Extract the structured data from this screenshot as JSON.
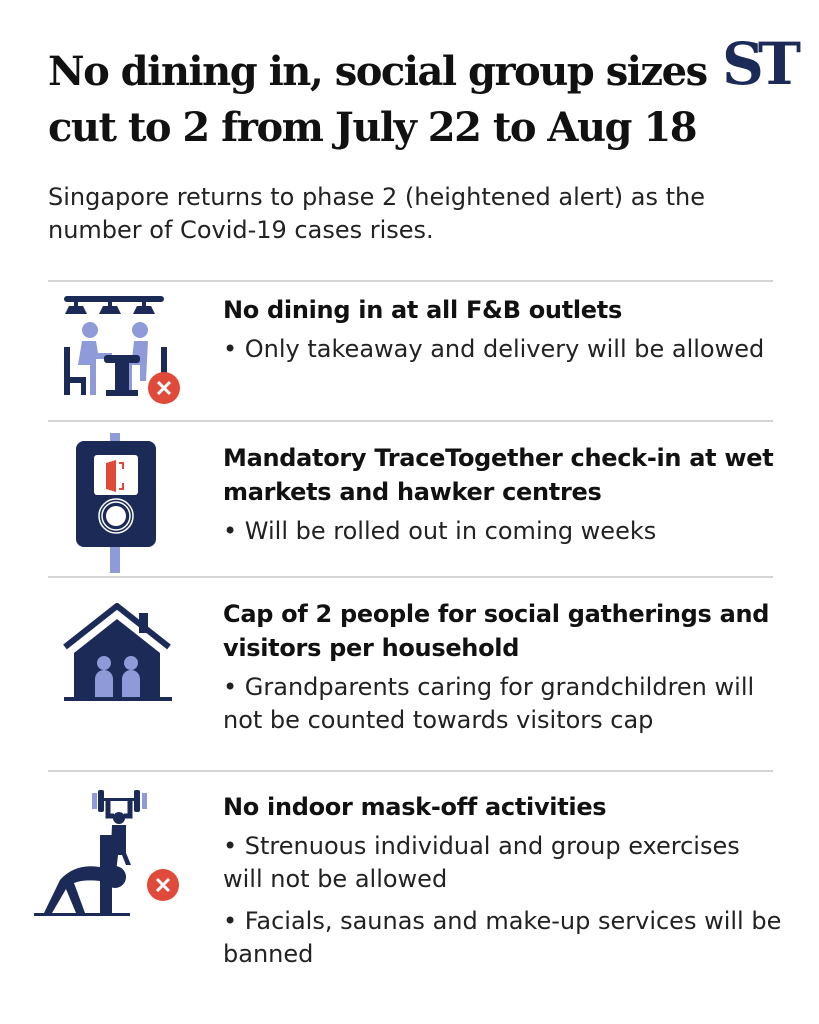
{
  "header": {
    "title": "No dining in, social group sizes cut to 2 from July 22 to Aug 18",
    "logo": "ST",
    "subtitle": "Singapore returns to phase 2 (heightened alert) as the number of Covid-19 cases rises."
  },
  "colors": {
    "navy": "#1b2a56",
    "lavender": "#8e9bd8",
    "red": "#e04a3a"
  },
  "items": [
    {
      "icon": "dining-table-no-icon",
      "heading": "No dining in at all F&B outlets",
      "bullets": [
        "• Only takeaway and delivery will be allowed"
      ]
    },
    {
      "icon": "tracetogether-checkin-icon",
      "heading": "Mandatory TraceTogether check-in at wet markets and hawker centres",
      "bullets": [
        "• Will be rolled out in coming weeks"
      ]
    },
    {
      "icon": "house-people-icon",
      "heading": "Cap of 2 people for social gatherings and visitors per household",
      "bullets": [
        "• Grandparents caring for grandchildren will not be counted towards visitors cap"
      ]
    },
    {
      "icon": "exercise-no-icon",
      "heading": "No indoor mask-off activities",
      "bullets": [
        "• Strenuous individual and group exercises will not be allowed",
        "• Facials, saunas and make-up services will be banned"
      ]
    }
  ]
}
